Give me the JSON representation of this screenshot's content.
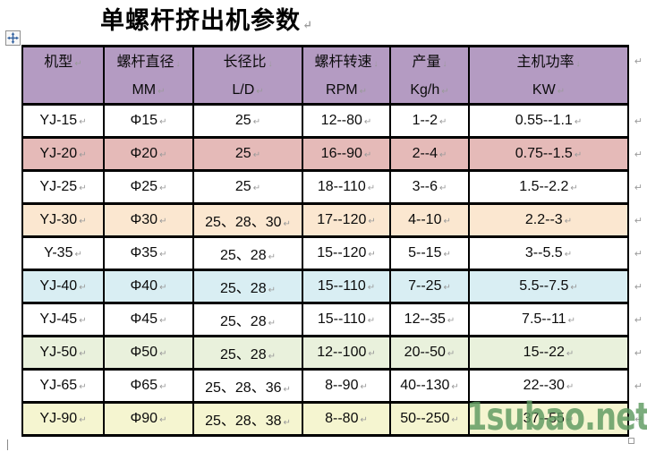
{
  "title": "单螺杆挤出机参数",
  "watermark": "1subao.net",
  "formatting_marks": {
    "end_of_cell": "↵",
    "line_break": "↓",
    "end_of_row": "↵"
  },
  "colors": {
    "header_bg": "#b49bc2",
    "row_white": "#ffffff",
    "row_pink": "#e5bab8",
    "row_cream": "#fbe7d0",
    "row_blue": "#d9eef3",
    "row_green": "#e9f1dc",
    "row_yellow": "#f5f5d0",
    "watermark_green": "#5f9a61",
    "border": "#000000"
  },
  "table": {
    "columns": [
      {
        "key": "model",
        "title": "机型",
        "subtitle": ""
      },
      {
        "key": "diameter",
        "title": "螺杆直径",
        "subtitle": "MM"
      },
      {
        "key": "ld",
        "title": "长径比",
        "subtitle": "L/D"
      },
      {
        "key": "rpm",
        "title": "螺杆转速",
        "subtitle": "RPM"
      },
      {
        "key": "output",
        "title": "产量",
        "subtitle": "Kg/h"
      },
      {
        "key": "power",
        "title": "主机功率",
        "subtitle": "KW"
      }
    ],
    "rows": [
      {
        "cells": [
          "YJ-15",
          "Φ15",
          "25",
          "12--80",
          "1--2",
          "0.55--1.1"
        ],
        "bg": "#ffffff"
      },
      {
        "cells": [
          "YJ-20",
          "Φ20",
          "25",
          "16--90",
          "2--4",
          "0.75--1.5"
        ],
        "bg": "#e5bab8"
      },
      {
        "cells": [
          "YJ-25",
          "Φ25",
          "25",
          "18--110",
          "3--6",
          "1.5--2.2"
        ],
        "bg": "#ffffff"
      },
      {
        "cells": [
          "YJ-30",
          "Φ30",
          "25、28、30",
          "17--120",
          "4--10",
          "2.2--3"
        ],
        "bg": "#fbe7d0"
      },
      {
        "cells": [
          "Y-35",
          "Φ35",
          "25、28",
          "15--120",
          "5--15",
          "3--5.5"
        ],
        "bg": "#ffffff"
      },
      {
        "cells": [
          "YJ-40",
          "Φ40",
          "25、28",
          "15--110",
          "7--25",
          "5.5--7.5"
        ],
        "bg": "#d9eef3"
      },
      {
        "cells": [
          "YJ-45",
          "Φ45",
          "25、28",
          "15--110",
          "12--35",
          "7.5--11"
        ],
        "bg": "#ffffff"
      },
      {
        "cells": [
          "YJ-50",
          "Φ50",
          "25、28",
          "12--100",
          "20--50",
          "15--22"
        ],
        "bg": "#e9f1dc"
      },
      {
        "cells": [
          "YJ-65",
          "Φ65",
          "25、28、36",
          "8--90",
          "40--130",
          "22--30"
        ],
        "bg": "#ffffff"
      },
      {
        "cells": [
          "YJ-90",
          "Φ90",
          "25、28、38",
          "8--80",
          "50--250",
          "37--55"
        ],
        "bg": "#f5f5d0"
      }
    ]
  }
}
